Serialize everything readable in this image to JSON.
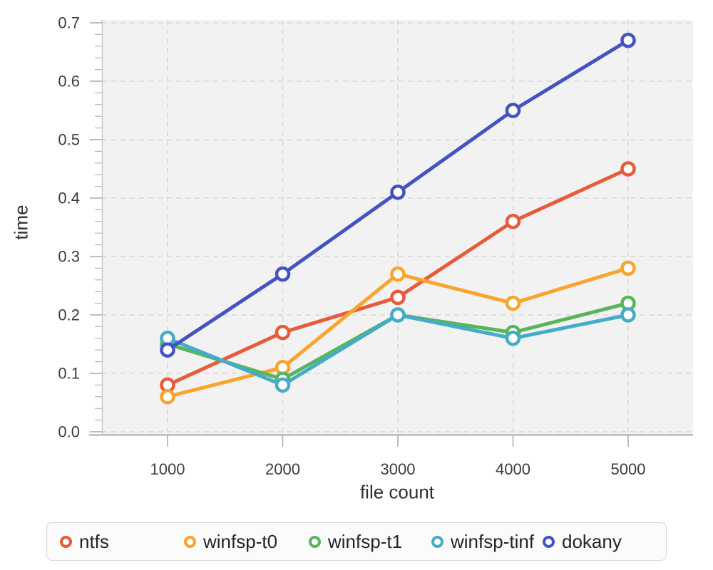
{
  "chart_data": {
    "type": "line",
    "title": "",
    "xlabel": "file count",
    "ylabel": "time",
    "x": [
      1000,
      2000,
      3000,
      4000,
      5000
    ],
    "x_tick_labels": [
      "1000",
      "2000",
      "3000",
      "4000",
      "5000"
    ],
    "y_ticks": [
      0.0,
      0.1,
      0.2,
      0.3,
      0.4,
      0.5,
      0.6,
      0.7
    ],
    "y_tick_labels": [
      "0.0",
      "0.1",
      "0.2",
      "0.3",
      "0.4",
      "0.5",
      "0.6",
      "0.7"
    ],
    "ylim": [
      0,
      0.7
    ],
    "y_minor_tick_step": 0.02,
    "grid": "dashed",
    "legend_position": "bottom",
    "series": [
      {
        "name": "ntfs",
        "color": "#e85a3a",
        "values": [
          0.08,
          0.17,
          0.23,
          0.36,
          0.45
        ]
      },
      {
        "name": "winfsp-t0",
        "color": "#f9a42b",
        "values": [
          0.06,
          0.11,
          0.27,
          0.22,
          0.28
        ]
      },
      {
        "name": "winfsp-t1",
        "color": "#57b55c",
        "values": [
          0.15,
          0.09,
          0.2,
          0.17,
          0.22
        ]
      },
      {
        "name": "winfsp-tinf",
        "color": "#45abc9",
        "values": [
          0.16,
          0.08,
          0.2,
          0.16,
          0.2
        ]
      },
      {
        "name": "dokany",
        "color": "#4453c4",
        "values": [
          0.14,
          0.27,
          0.41,
          0.55,
          0.67
        ]
      }
    ],
    "colors": {
      "plot_background": "#f2f2f2",
      "gridline": "#d8d8d8",
      "plot_border": "#c9c9c9",
      "axis_line": "#a9a9a9",
      "minor_tick": "#b5b5b5",
      "tick_label": "#3d3d3d",
      "axis_title": "#2f2f2f",
      "legend_text": "#20242c",
      "legend_border": "#d5d5d7",
      "legend_background": "#fbfbfb"
    }
  }
}
